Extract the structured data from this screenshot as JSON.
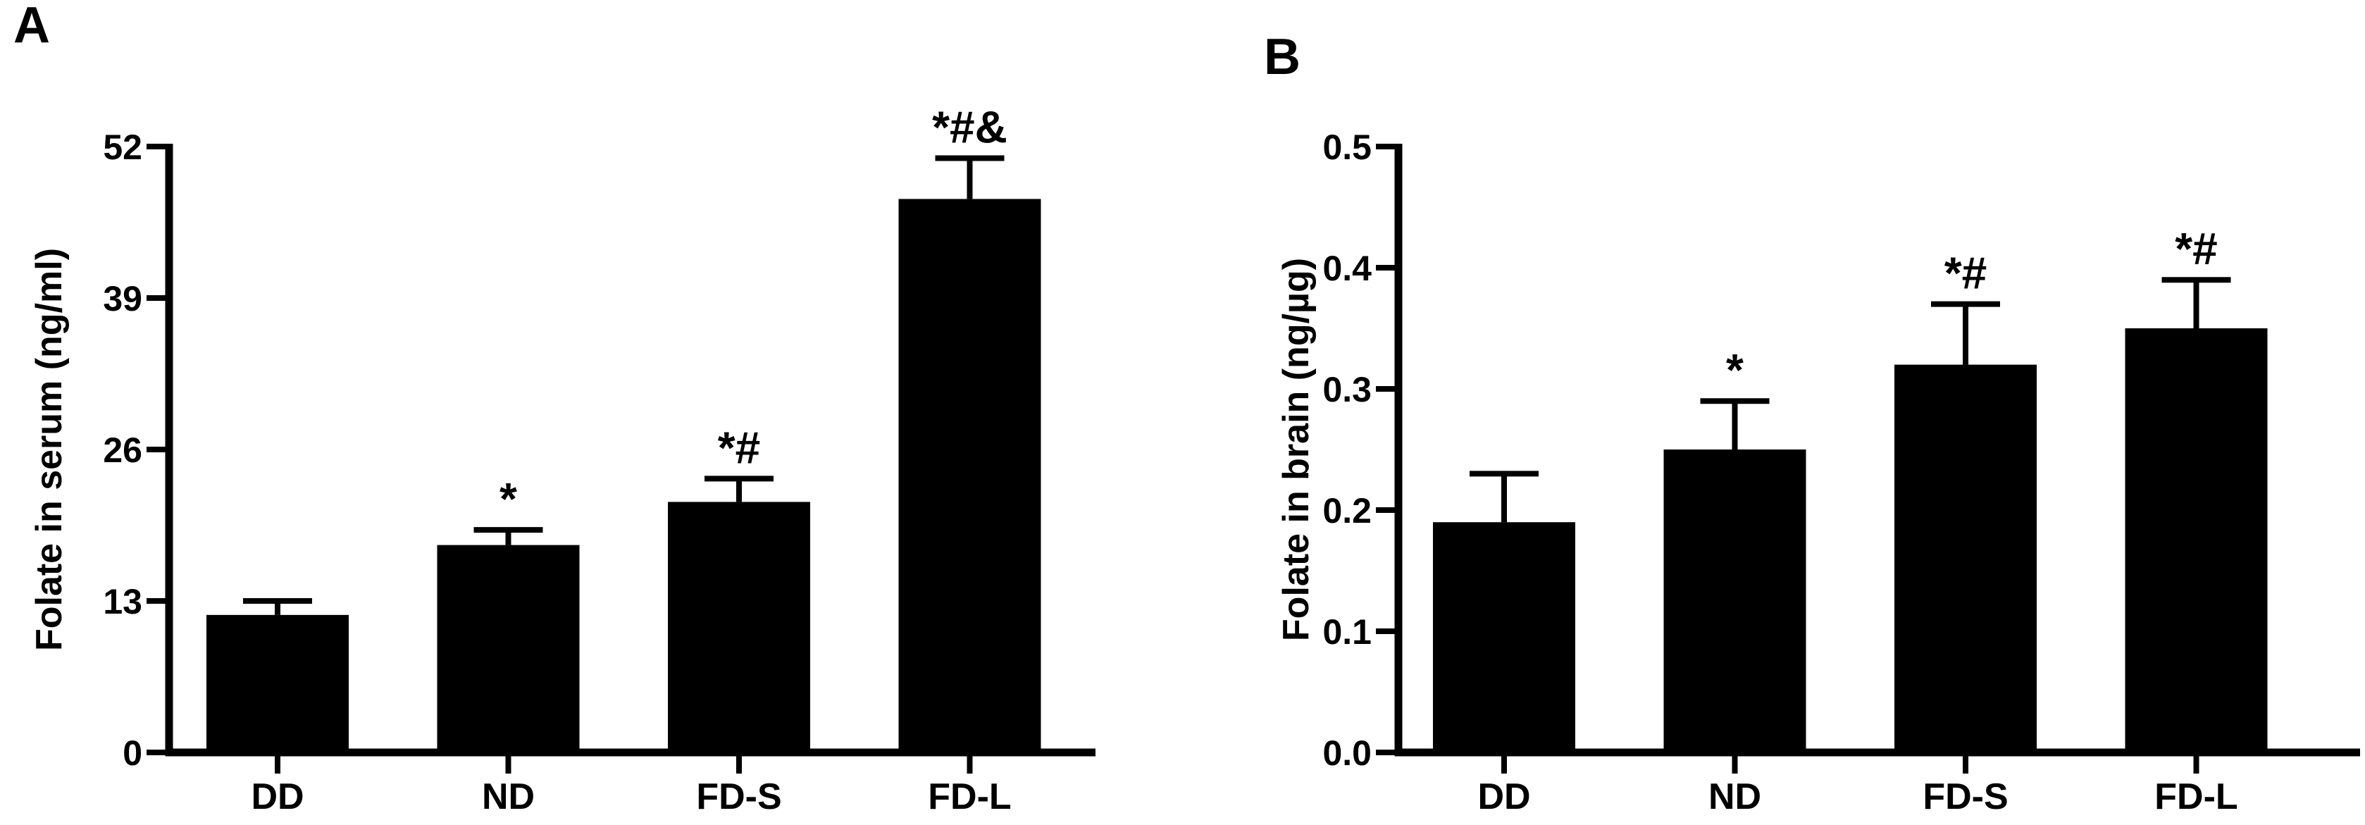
{
  "chart_data": [
    {
      "panel_label": "A",
      "type": "bar",
      "categories": [
        "DD",
        "ND",
        "FD-S",
        "FD-L"
      ],
      "values": [
        11.8,
        17.8,
        21.5,
        47.5
      ],
      "errors": [
        1.2,
        1.3,
        2.0,
        3.5
      ],
      "annotations": [
        "",
        "*",
        "*#",
        "*#&"
      ],
      "ylabel": "Folate in serum (ng/ml)",
      "xlabel": "",
      "ylim": [
        0,
        52
      ],
      "yticks": [
        0,
        13,
        26,
        39,
        52
      ],
      "ytick_labels": [
        "0",
        "13",
        "26",
        "39",
        "52"
      ],
      "bar_color": "#000000",
      "grid": false
    },
    {
      "panel_label": "B",
      "type": "bar",
      "categories": [
        "DD",
        "ND",
        "FD-S",
        "FD-L"
      ],
      "values": [
        0.19,
        0.25,
        0.32,
        0.35
      ],
      "errors": [
        0.04,
        0.04,
        0.05,
        0.04
      ],
      "annotations": [
        "",
        "*",
        "*#",
        "*#"
      ],
      "ylabel": "Folate in brain (ng/µg)",
      "xlabel": "",
      "ylim": [
        0,
        0.5
      ],
      "yticks": [
        0.0,
        0.1,
        0.2,
        0.3,
        0.4,
        0.5
      ],
      "ytick_labels": [
        "0.0",
        "0.1",
        "0.2",
        "0.3",
        "0.4",
        "0.5"
      ],
      "bar_color": "#000000",
      "grid": false
    }
  ]
}
